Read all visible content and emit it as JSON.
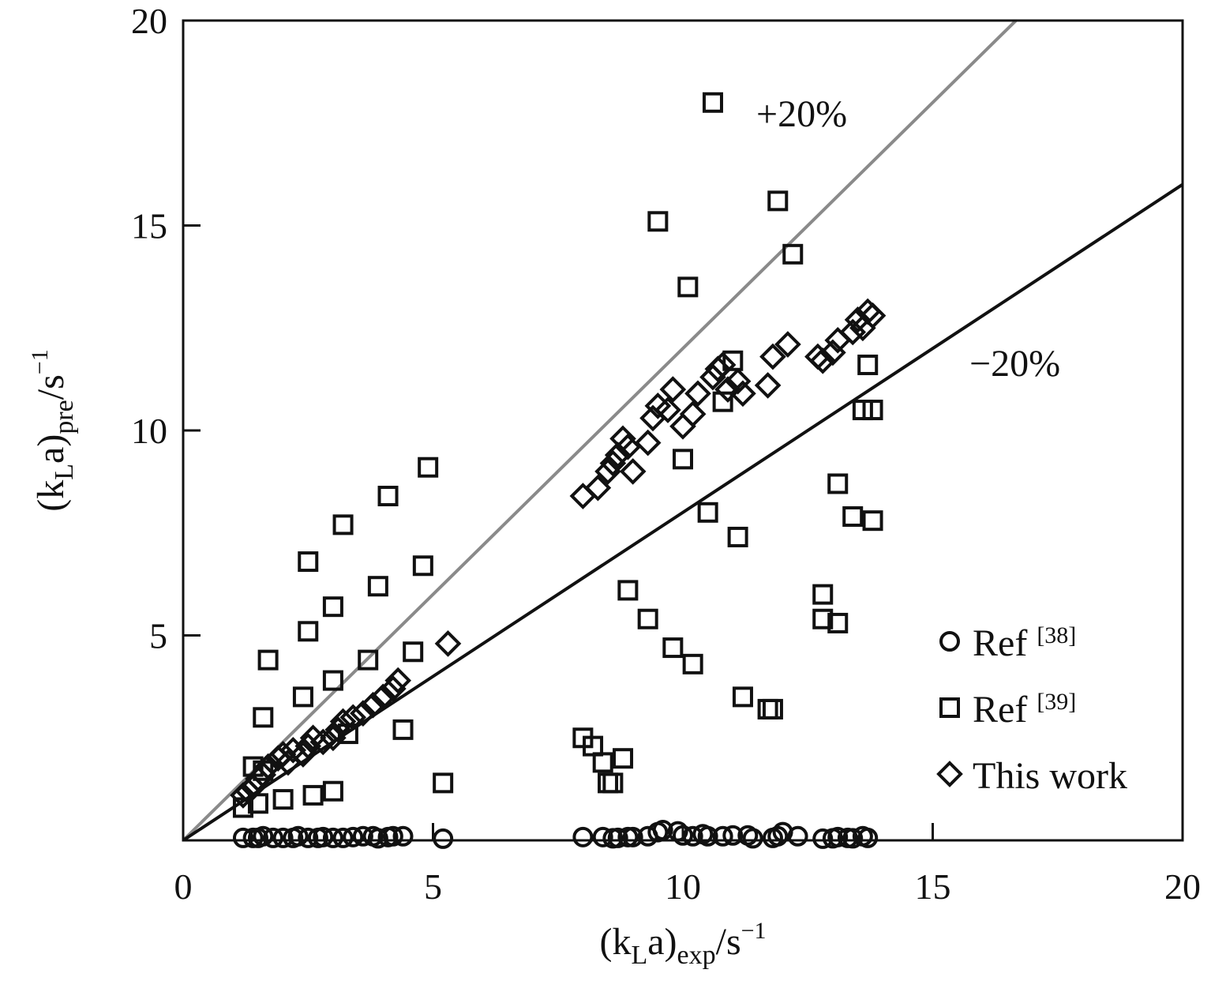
{
  "chart_data": {
    "type": "scatter",
    "xlim": [
      0,
      20
    ],
    "ylim": [
      0,
      20
    ],
    "x_ticks": [
      "0",
      "5",
      "10",
      "15",
      "20"
    ],
    "y_ticks": [
      "5",
      "10",
      "15",
      "20"
    ],
    "grid": false,
    "legend_position": "bottom-right",
    "xlabel": {
      "pre": "(k",
      "sub1": "L",
      "mid": "a)",
      "sub2": "exp",
      "post": "/s",
      "sup": "−1"
    },
    "ylabel": {
      "pre": "(k",
      "sub1": "L",
      "mid": "a)",
      "sub2": "pre",
      "post": "/s",
      "sup": "−1"
    },
    "reference_lines": [
      {
        "label": "+20%",
        "slope": 1.2,
        "color": "#8a8a8a"
      },
      {
        "label": "−20%",
        "slope": 0.8,
        "color": "#111111"
      }
    ],
    "series": [
      {
        "name": "Ref [38]",
        "legend_text": "Ref ",
        "legend_sup": "[38]",
        "marker": "circle",
        "points": [
          [
            1.2,
            0.06
          ],
          [
            1.4,
            0.06
          ],
          [
            1.5,
            0.06
          ],
          [
            1.6,
            0.1
          ],
          [
            1.8,
            0.06
          ],
          [
            2.0,
            0.06
          ],
          [
            2.2,
            0.06
          ],
          [
            2.3,
            0.1
          ],
          [
            2.5,
            0.06
          ],
          [
            2.7,
            0.06
          ],
          [
            2.8,
            0.08
          ],
          [
            3.0,
            0.06
          ],
          [
            3.2,
            0.06
          ],
          [
            3.4,
            0.08
          ],
          [
            3.6,
            0.1
          ],
          [
            3.8,
            0.1
          ],
          [
            3.9,
            0.05
          ],
          [
            4.1,
            0.08
          ],
          [
            4.2,
            0.1
          ],
          [
            4.4,
            0.1
          ],
          [
            5.2,
            0.04
          ],
          [
            8.0,
            0.08
          ],
          [
            8.4,
            0.08
          ],
          [
            8.6,
            0.05
          ],
          [
            8.7,
            0.06
          ],
          [
            8.9,
            0.08
          ],
          [
            9.0,
            0.08
          ],
          [
            9.3,
            0.1
          ],
          [
            9.5,
            0.2
          ],
          [
            9.6,
            0.25
          ],
          [
            9.9,
            0.22
          ],
          [
            10.0,
            0.12
          ],
          [
            10.2,
            0.1
          ],
          [
            10.4,
            0.15
          ],
          [
            10.5,
            0.1
          ],
          [
            10.8,
            0.1
          ],
          [
            11.0,
            0.12
          ],
          [
            11.3,
            0.12
          ],
          [
            11.4,
            0.05
          ],
          [
            11.8,
            0.06
          ],
          [
            11.9,
            0.1
          ],
          [
            12.0,
            0.2
          ],
          [
            12.3,
            0.1
          ],
          [
            12.8,
            0.04
          ],
          [
            13.0,
            0.05
          ],
          [
            13.1,
            0.08
          ],
          [
            13.3,
            0.06
          ],
          [
            13.4,
            0.05
          ],
          [
            13.6,
            0.1
          ],
          [
            13.7,
            0.06
          ]
        ]
      },
      {
        "name": "Ref [39]",
        "legend_text": "Ref ",
        "legend_sup": "[39]",
        "marker": "square",
        "points": [
          [
            1.2,
            0.8
          ],
          [
            1.4,
            1.8
          ],
          [
            1.5,
            0.9
          ],
          [
            1.6,
            1.7
          ],
          [
            1.6,
            3.0
          ],
          [
            1.7,
            4.4
          ],
          [
            2.0,
            1.0
          ],
          [
            2.4,
            3.5
          ],
          [
            2.5,
            5.1
          ],
          [
            2.6,
            1.1
          ],
          [
            2.5,
            6.8
          ],
          [
            3.0,
            1.2
          ],
          [
            3.0,
            3.9
          ],
          [
            3.0,
            5.7
          ],
          [
            3.2,
            7.7
          ],
          [
            3.3,
            2.6
          ],
          [
            3.7,
            4.4
          ],
          [
            3.9,
            6.2
          ],
          [
            4.1,
            8.4
          ],
          [
            4.4,
            2.7
          ],
          [
            4.6,
            4.6
          ],
          [
            4.8,
            6.7
          ],
          [
            4.9,
            9.1
          ],
          [
            5.2,
            1.4
          ],
          [
            8.0,
            2.5
          ],
          [
            8.2,
            2.3
          ],
          [
            8.4,
            1.9
          ],
          [
            8.5,
            1.4
          ],
          [
            8.6,
            1.4
          ],
          [
            8.8,
            2.0
          ],
          [
            8.9,
            6.1
          ],
          [
            9.3,
            5.4
          ],
          [
            9.5,
            15.1
          ],
          [
            9.8,
            4.7
          ],
          [
            10.0,
            9.3
          ],
          [
            10.1,
            13.5
          ],
          [
            10.2,
            4.3
          ],
          [
            10.5,
            8.0
          ],
          [
            10.6,
            18.0
          ],
          [
            10.8,
            10.7
          ],
          [
            11.0,
            11.7
          ],
          [
            11.1,
            7.4
          ],
          [
            11.2,
            3.5
          ],
          [
            11.7,
            3.2
          ],
          [
            11.8,
            3.2
          ],
          [
            11.9,
            15.6
          ],
          [
            12.2,
            14.3
          ],
          [
            12.8,
            6.0
          ],
          [
            12.8,
            5.4
          ],
          [
            13.1,
            5.3
          ],
          [
            13.1,
            8.7
          ],
          [
            13.4,
            7.9
          ],
          [
            13.6,
            10.5
          ],
          [
            13.7,
            11.6
          ],
          [
            13.8,
            10.5
          ],
          [
            13.8,
            7.8
          ]
        ]
      },
      {
        "name": "This work",
        "legend_text": "This work",
        "legend_sup": "",
        "marker": "diamond",
        "points": [
          [
            1.2,
            1.1
          ],
          [
            1.3,
            1.2
          ],
          [
            1.4,
            1.3
          ],
          [
            1.5,
            1.5
          ],
          [
            1.6,
            1.6
          ],
          [
            1.7,
            1.8
          ],
          [
            1.9,
            2.0
          ],
          [
            2.0,
            2.1
          ],
          [
            2.1,
            1.9
          ],
          [
            2.2,
            2.2
          ],
          [
            2.4,
            2.1
          ],
          [
            2.5,
            2.3
          ],
          [
            2.6,
            2.5
          ],
          [
            2.8,
            2.4
          ],
          [
            3.0,
            2.5
          ],
          [
            3.1,
            2.7
          ],
          [
            3.2,
            2.9
          ],
          [
            3.4,
            3.0
          ],
          [
            3.6,
            3.1
          ],
          [
            3.8,
            3.3
          ],
          [
            4.0,
            3.5
          ],
          [
            4.2,
            3.7
          ],
          [
            4.3,
            3.9
          ],
          [
            5.3,
            4.8
          ],
          [
            8.0,
            8.4
          ],
          [
            8.3,
            8.6
          ],
          [
            8.5,
            9.0
          ],
          [
            8.6,
            9.2
          ],
          [
            8.7,
            9.4
          ],
          [
            8.8,
            9.8
          ],
          [
            8.9,
            9.6
          ],
          [
            9.0,
            9.0
          ],
          [
            9.3,
            9.7
          ],
          [
            9.4,
            10.3
          ],
          [
            9.5,
            10.6
          ],
          [
            9.7,
            10.5
          ],
          [
            9.8,
            11.0
          ],
          [
            10.0,
            10.1
          ],
          [
            10.2,
            10.4
          ],
          [
            10.3,
            10.9
          ],
          [
            10.6,
            11.3
          ],
          [
            10.7,
            11.5
          ],
          [
            10.8,
            11.6
          ],
          [
            10.9,
            11.0
          ],
          [
            11.1,
            11.2
          ],
          [
            11.2,
            10.9
          ],
          [
            11.7,
            11.1
          ],
          [
            11.8,
            11.8
          ],
          [
            12.1,
            12.1
          ],
          [
            12.7,
            11.8
          ],
          [
            12.8,
            11.7
          ],
          [
            13.0,
            11.9
          ],
          [
            13.1,
            12.2
          ],
          [
            13.4,
            12.4
          ],
          [
            13.5,
            12.7
          ],
          [
            13.6,
            12.5
          ],
          [
            13.7,
            12.9
          ],
          [
            13.8,
            12.8
          ]
        ]
      }
    ]
  }
}
